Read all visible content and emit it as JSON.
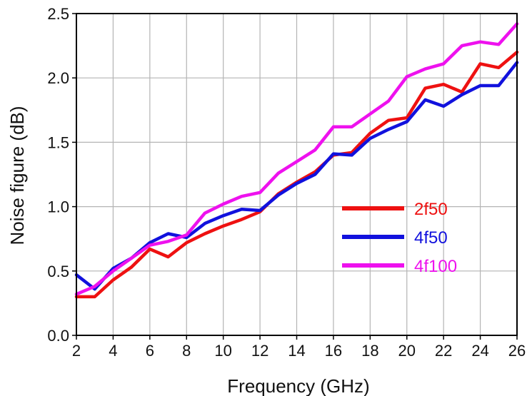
{
  "chart_data": {
    "type": "line",
    "title": "",
    "xlabel": "Frequency (GHz)",
    "ylabel": "Noise figure (dB)",
    "xlim": [
      2,
      26
    ],
    "ylim": [
      0.0,
      2.5
    ],
    "xticks": [
      2,
      4,
      6,
      8,
      10,
      12,
      14,
      16,
      18,
      20,
      22,
      24,
      26
    ],
    "xtick_labels": [
      "2",
      "4",
      "6",
      "8",
      "10",
      "12",
      "14",
      "16",
      "18",
      "20",
      "22",
      "24",
      "26"
    ],
    "yticks": [
      0.0,
      0.5,
      1.0,
      1.5,
      2.0,
      2.5
    ],
    "ytick_labels": [
      "0.0",
      "0.5",
      "1.0",
      "1.5",
      "2.0",
      "2.5"
    ],
    "grid": true,
    "legend_position": "right, middle",
    "x": [
      2,
      3,
      4,
      5,
      6,
      7,
      8,
      9,
      10,
      11,
      12,
      13,
      14,
      15,
      16,
      17,
      18,
      19,
      20,
      21,
      22,
      23,
      24,
      25,
      26
    ],
    "series": [
      {
        "name": "2f50",
        "color": "#ee1111",
        "values": [
          0.3,
          0.3,
          0.43,
          0.53,
          0.67,
          0.61,
          0.72,
          0.79,
          0.85,
          0.9,
          0.96,
          1.1,
          1.19,
          1.27,
          1.4,
          1.42,
          1.57,
          1.67,
          1.69,
          1.92,
          1.95,
          1.89,
          2.11,
          2.08,
          2.2
        ]
      },
      {
        "name": "4f50",
        "color": "#1111dd",
        "values": [
          0.47,
          0.36,
          0.52,
          0.6,
          0.72,
          0.79,
          0.76,
          0.87,
          0.93,
          0.98,
          0.97,
          1.09,
          1.18,
          1.25,
          1.41,
          1.4,
          1.53,
          1.6,
          1.66,
          1.83,
          1.78,
          1.87,
          1.94,
          1.94,
          2.12
        ]
      },
      {
        "name": "4f100",
        "color": "#ee11ee",
        "values": [
          0.32,
          0.38,
          0.5,
          0.6,
          0.7,
          0.73,
          0.78,
          0.95,
          1.02,
          1.08,
          1.11,
          1.26,
          1.35,
          1.44,
          1.62,
          1.62,
          1.72,
          1.82,
          2.01,
          2.07,
          2.11,
          2.25,
          2.28,
          2.26,
          2.42
        ]
      }
    ]
  }
}
